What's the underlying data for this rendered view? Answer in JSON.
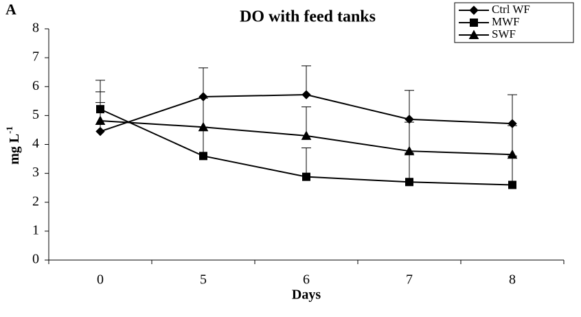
{
  "chart_data": {
    "type": "line",
    "panel_label": "A",
    "title": "DO with feed tanks",
    "xlabel": "Days",
    "ylabel": "mg L",
    "ylabel_sup": "-1",
    "categories": [
      "0",
      "5",
      "6",
      "7",
      "8"
    ],
    "series": [
      {
        "name": "Ctrl WF",
        "color": "#000000",
        "marker": "diamond",
        "values": [
          4.45,
          5.65,
          5.72,
          4.87,
          4.72
        ],
        "errors": [
          1.0,
          1.0,
          1.0,
          1.0,
          1.0
        ]
      },
      {
        "name": "MWF",
        "color": "#000000",
        "marker": "square",
        "values": [
          5.22,
          3.6,
          2.88,
          2.7,
          2.6
        ],
        "errors": [
          1.0,
          1.0,
          1.0,
          1.0,
          1.0
        ]
      },
      {
        "name": "SWF",
        "color": "#000000",
        "marker": "triangle",
        "values": [
          4.82,
          4.6,
          4.3,
          3.77,
          3.65
        ],
        "errors": [
          1.0,
          1.0,
          1.0,
          1.0,
          1.0
        ]
      }
    ],
    "ylim": [
      0,
      8
    ],
    "yticks": [
      0,
      1,
      2,
      3,
      4,
      5,
      6,
      7,
      8
    ],
    "grid": false,
    "legend": "top-right"
  }
}
